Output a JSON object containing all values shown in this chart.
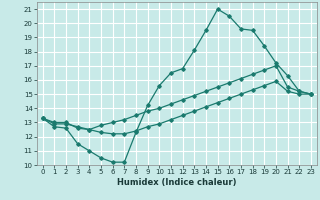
{
  "xlabel": "Humidex (Indice chaleur)",
  "ylabel": "",
  "xlim": [
    -0.5,
    23.5
  ],
  "ylim": [
    10,
    21.5
  ],
  "yticks": [
    10,
    11,
    12,
    13,
    14,
    15,
    16,
    17,
    18,
    19,
    20,
    21
  ],
  "xticks": [
    0,
    1,
    2,
    3,
    4,
    5,
    6,
    7,
    8,
    9,
    10,
    11,
    12,
    13,
    14,
    15,
    16,
    17,
    18,
    19,
    20,
    21,
    22,
    23
  ],
  "bg_color": "#c8eae8",
  "grid_color": "#ffffff",
  "line_color": "#1a7a6e",
  "lines": [
    {
      "x": [
        0,
        1,
        2,
        3,
        4,
        5,
        6,
        7,
        8,
        9,
        10,
        11,
        12,
        13,
        14,
        15,
        16,
        17,
        18,
        19,
        20,
        21,
        22,
        23
      ],
      "y": [
        13.3,
        12.7,
        12.6,
        11.5,
        11.0,
        10.5,
        10.2,
        10.2,
        12.3,
        14.2,
        15.6,
        16.5,
        16.8,
        18.1,
        19.5,
        21.0,
        20.5,
        19.6,
        19.5,
        18.4,
        17.2,
        16.3,
        15.2,
        15.0
      ]
    },
    {
      "x": [
        0,
        1,
        2,
        3,
        4,
        5,
        6,
        7,
        8,
        9,
        10,
        11,
        12,
        13,
        14,
        15,
        16,
        17,
        18,
        19,
        20,
        21,
        22,
        23
      ],
      "y": [
        13.3,
        13.0,
        13.0,
        12.6,
        12.5,
        12.8,
        13.0,
        13.2,
        13.5,
        13.8,
        14.0,
        14.3,
        14.6,
        14.9,
        15.2,
        15.5,
        15.8,
        16.1,
        16.4,
        16.7,
        17.0,
        15.5,
        15.2,
        15.0
      ]
    },
    {
      "x": [
        0,
        1,
        2,
        3,
        4,
        5,
        6,
        7,
        8,
        9,
        10,
        11,
        12,
        13,
        14,
        15,
        16,
        17,
        18,
        19,
        20,
        21,
        22,
        23
      ],
      "y": [
        13.3,
        12.9,
        12.9,
        12.7,
        12.5,
        12.3,
        12.2,
        12.2,
        12.4,
        12.7,
        12.9,
        13.2,
        13.5,
        13.8,
        14.1,
        14.4,
        14.7,
        15.0,
        15.3,
        15.6,
        15.9,
        15.2,
        15.0,
        15.0
      ]
    }
  ]
}
